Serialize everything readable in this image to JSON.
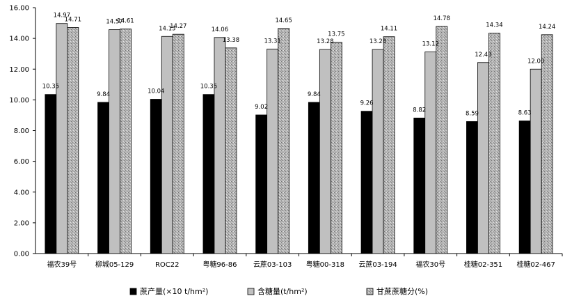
{
  "chart_data": {
    "type": "bar",
    "categories": [
      "福农39号",
      "柳城05-129",
      "ROC22",
      "粤糖96-86",
      "云蔗03-103",
      "粤糖00-318",
      "云蔗03-194",
      "福农30号",
      "桂糖02-351",
      "桂糖02-467"
    ],
    "series": [
      {
        "name": "蔗产量(×10 t/hm²)",
        "color": "#000000",
        "pattern": "solid",
        "values": [
          10.35,
          9.84,
          10.04,
          10.35,
          9.02,
          9.84,
          9.26,
          8.82,
          8.59,
          8.63
        ]
      },
      {
        "name": "含糖量(t/hm²)",
        "color": "#c0c0c0",
        "pattern": "solid",
        "values": [
          14.97,
          14.57,
          14.13,
          14.06,
          13.31,
          13.28,
          13.28,
          13.12,
          12.43,
          12.0
        ]
      },
      {
        "name": "甘蔗蔗糖分(%)",
        "color": "#a8a8a8",
        "pattern": "stipple",
        "values": [
          14.71,
          14.61,
          14.27,
          13.38,
          14.65,
          13.75,
          14.11,
          14.78,
          14.34,
          14.24
        ]
      }
    ],
    "value_labels": [
      [
        "10.35",
        "9.84",
        "10.04",
        "10.35",
        "9.02",
        "9.84",
        "9.26",
        "8.82",
        "8.59",
        "8.63"
      ],
      [
        "14.97",
        "14.57",
        "14.13",
        "14.06",
        "13.31",
        "13.28",
        "13.28",
        "13.12",
        "12.43",
        "12.00"
      ],
      [
        "14.71",
        "14.61",
        "14.27",
        "13.38",
        "14.65",
        "13.75",
        "14.11",
        "14.78",
        "14.34",
        "14.24"
      ]
    ],
    "yticks": [
      "0.00",
      "2.00",
      "4.00",
      "6.00",
      "8.00",
      "10.00",
      "12.00",
      "14.00",
      "16.00"
    ],
    "ylim": [
      0,
      16
    ],
    "grid": false,
    "legend_placement": "bottom",
    "title": "",
    "xlabel": "",
    "ylabel": ""
  }
}
